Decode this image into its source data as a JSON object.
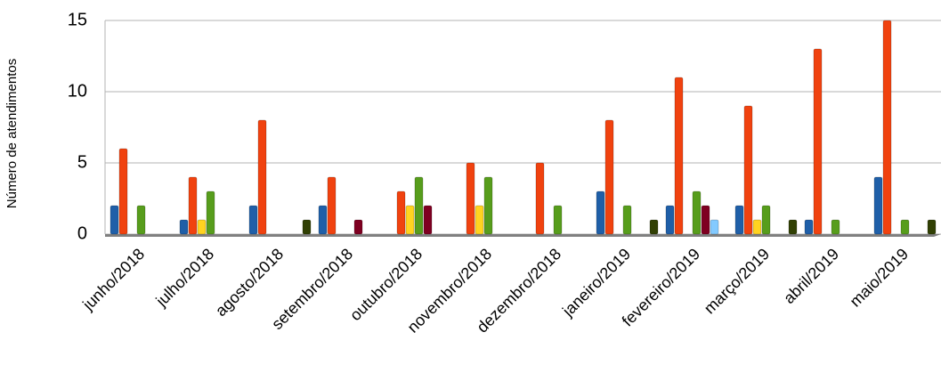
{
  "chart_data": {
    "type": "bar",
    "y_label": "Número de atendimentos",
    "categories": [
      "junho/2018",
      "julho/2018",
      "agosto/2018",
      "setembro/2018",
      "outubro/2018",
      "novembro/2018",
      "dezembro/2018",
      "janeiro/2019",
      "fevereiro/2019",
      "março/2019",
      "abril/2019",
      "maio/2019"
    ],
    "series": [
      {
        "color": "#1f5fa8",
        "values": [
          2,
          1,
          2,
          2,
          0,
          0,
          0,
          3,
          2,
          2,
          1,
          4
        ]
      },
      {
        "color": "#f0420f",
        "values": [
          6,
          4,
          8,
          4,
          3,
          5,
          5,
          8,
          11,
          9,
          13,
          15
        ]
      },
      {
        "color": "#ffd320",
        "values": [
          0,
          1,
          0,
          0,
          2,
          2,
          0,
          0,
          0,
          1,
          0,
          0
        ]
      },
      {
        "color": "#579d1c",
        "values": [
          2,
          3,
          0,
          0,
          4,
          4,
          2,
          2,
          3,
          2,
          1,
          1
        ]
      },
      {
        "color": "#7e0021",
        "values": [
          0,
          0,
          0,
          1,
          2,
          0,
          0,
          0,
          2,
          0,
          0,
          0
        ]
      },
      {
        "color": "#83caff",
        "values": [
          0,
          0,
          0,
          0,
          0,
          0,
          0,
          0,
          1,
          0,
          0,
          0
        ]
      },
      {
        "color": "#314004",
        "values": [
          0,
          0,
          1,
          0,
          0,
          0,
          0,
          1,
          0,
          1,
          0,
          1
        ]
      }
    ],
    "ylim": [
      0,
      15
    ],
    "yticks": [
      0,
      5,
      10,
      15
    ],
    "grid": true
  }
}
